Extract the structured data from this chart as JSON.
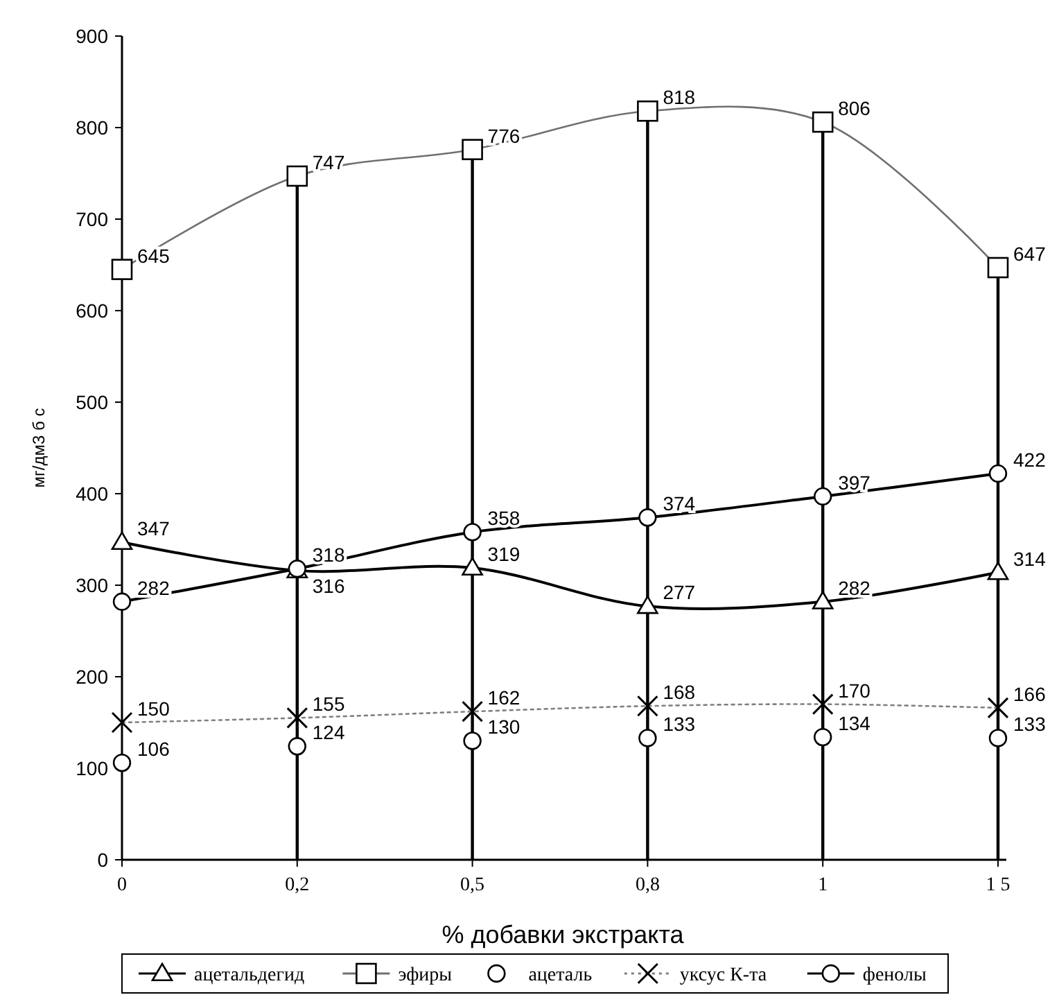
{
  "chart_data": {
    "type": "line",
    "xlabel": "% добавки экстракта",
    "ylabel": "мг/дм3 б с",
    "categories": [
      "0",
      "0,2",
      "0,5",
      "0,8",
      "1",
      "1 5"
    ],
    "ylim": [
      0,
      900
    ],
    "yticks": [
      0,
      100,
      200,
      300,
      400,
      500,
      600,
      700,
      800,
      900
    ],
    "grid": false,
    "legend": "bottom",
    "data_labels": true,
    "ref_lines": [
      {
        "axis": "x",
        "value": "0,2",
        "color": "#000000"
      },
      {
        "axis": "x",
        "value": "0,5",
        "color": "#000000"
      },
      {
        "axis": "x",
        "value": "0,8",
        "color": "#000000"
      },
      {
        "axis": "x",
        "value": "1",
        "color": "#000000"
      },
      {
        "axis": "x",
        "value": "1 5",
        "color": "#000000"
      }
    ],
    "series": [
      {
        "name": "ацетальдегид",
        "color": "#000000",
        "marker": "triangle",
        "line_style": "solid",
        "values": [
          347,
          316,
          319,
          277,
          282,
          314
        ]
      },
      {
        "name": "эфиры",
        "color": "#707070",
        "marker": "square",
        "line_style": "solid",
        "values": [
          645,
          747,
          776,
          818,
          806,
          647
        ]
      },
      {
        "name": "ацеталь",
        "type": "scatter",
        "color": "#000000",
        "marker": "circle",
        "values": [
          106,
          124,
          130,
          133,
          134,
          133
        ]
      },
      {
        "name": "уксус К-та",
        "color": "#808080",
        "marker": "cross",
        "line_style": "dotted",
        "values": [
          150,
          155,
          162,
          168,
          170,
          166
        ]
      },
      {
        "name": "фенолы",
        "color": "#000000",
        "marker": "circle",
        "line_style": "solid",
        "values": [
          282,
          318,
          358,
          374,
          397,
          422
        ]
      }
    ]
  }
}
